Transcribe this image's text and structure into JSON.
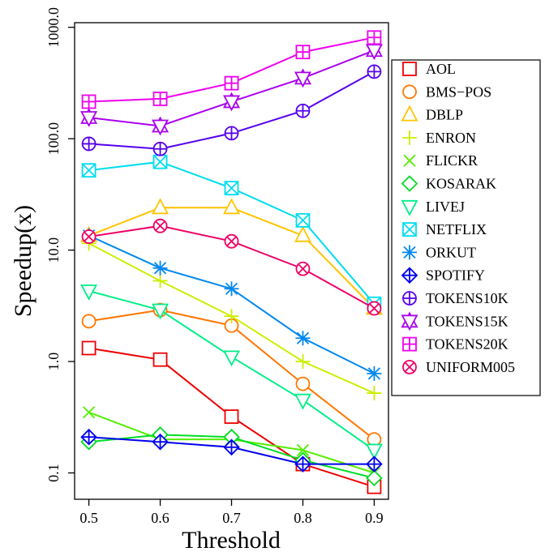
{
  "chart_data": {
    "type": "line",
    "xlabel": "Threshold",
    "ylabel": "Speedup(x)",
    "y_scale": "log",
    "x": [
      0.5,
      0.6,
      0.7,
      0.8,
      0.9
    ],
    "x_tick_labels": [
      "0.5",
      "0.6",
      "0.7",
      "0.8",
      "0.9"
    ],
    "y_ticks": [
      0.1,
      1.0,
      10.0,
      100.0,
      1000.0
    ],
    "y_tick_labels": [
      "0.1",
      "1.0",
      "10.0",
      "100.0",
      "1000.0"
    ],
    "xlim": [
      0.48,
      0.92
    ],
    "ylim": [
      0.058,
      1100
    ],
    "grid": false,
    "legend_position": "right",
    "series": [
      {
        "name": "AOL",
        "color": "#ee0000",
        "marker": "square",
        "values": [
          1.32,
          1.04,
          0.32,
          0.12,
          0.075
        ]
      },
      {
        "name": "BMS−POS",
        "color": "#ff7700",
        "marker": "circle",
        "values": [
          2.3,
          2.9,
          2.1,
          0.63,
          0.2
        ]
      },
      {
        "name": "DBLP",
        "color": "#ffc400",
        "marker": "triangle-up",
        "values": [
          13.5,
          24,
          24,
          13.5,
          3.0
        ]
      },
      {
        "name": "ENRON",
        "color": "#ccee00",
        "marker": "plus",
        "values": [
          11.5,
          5.3,
          2.55,
          1.0,
          0.52
        ]
      },
      {
        "name": "FLICKR",
        "color": "#55ee00",
        "marker": "cross",
        "values": [
          0.35,
          0.2,
          0.2,
          0.16,
          0.1
        ]
      },
      {
        "name": "KOSARAK",
        "color": "#00dd22",
        "marker": "diamond",
        "values": [
          0.19,
          0.22,
          0.21,
          0.13,
          0.09
        ]
      },
      {
        "name": "LIVEJ",
        "color": "#00ee88",
        "marker": "triangle-down",
        "values": [
          4.3,
          2.9,
          1.1,
          0.45,
          0.16
        ]
      },
      {
        "name": "NETFLIX",
        "color": "#00ddee",
        "marker": "box-x",
        "values": [
          52,
          62,
          36,
          18.5,
          3.3
        ]
      },
      {
        "name": "ORKUT",
        "color": "#0088ee",
        "marker": "asterisk",
        "values": [
          13.5,
          6.9,
          4.5,
          1.62,
          0.78
        ]
      },
      {
        "name": "SPOTIFY",
        "color": "#0000ee",
        "marker": "diamond-plus",
        "values": [
          0.21,
          0.19,
          0.17,
          0.12,
          0.12
        ]
      },
      {
        "name": "TOKENS10K",
        "color": "#5500ee",
        "marker": "circle-plus",
        "values": [
          90,
          81,
          112,
          178,
          400
        ]
      },
      {
        "name": "TOKENS15K",
        "color": "#aa00ee",
        "marker": "star-david",
        "values": [
          155,
          130,
          215,
          350,
          620
        ]
      },
      {
        "name": "TOKENS20K",
        "color": "#ee00ee",
        "marker": "square-plus",
        "values": [
          215,
          228,
          315,
          600,
          810
        ]
      },
      {
        "name": "UNIFORM005",
        "color": "#ee0066",
        "marker": "circle-x",
        "values": [
          13.2,
          16.5,
          12.0,
          6.8,
          3.0
        ]
      }
    ]
  }
}
